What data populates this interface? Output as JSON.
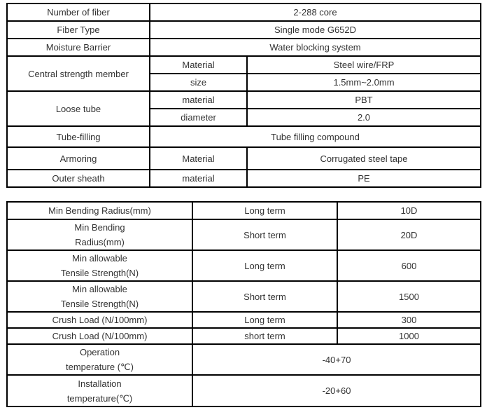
{
  "structure_table": {
    "rows": [
      {
        "label": "Number of fiber",
        "value": "2-288 core"
      },
      {
        "label": "Fiber Type",
        "value": "Single mode G652D"
      },
      {
        "label": "Moisture Barrier",
        "value": "Water blocking system"
      },
      {
        "label": "Central strength member",
        "sub": [
          {
            "label": "Material",
            "value": "Steel wire/FRP"
          },
          {
            "label": "size",
            "value": "1.5mm~2.0mm"
          }
        ]
      },
      {
        "label": "Loose tube",
        "sub": [
          {
            "label": "material",
            "value": "PBT"
          },
          {
            "label": "diameter",
            "value": "2.0"
          }
        ]
      },
      {
        "label": "Tube-filling",
        "value": "Tube filling compound"
      },
      {
        "label": "Armoring",
        "sub": [
          {
            "label": "Material",
            "value": "Corrugated steel tape"
          }
        ]
      },
      {
        "label": "Outer sheath",
        "sub": [
          {
            "label": "material",
            "value": "PE"
          }
        ]
      }
    ]
  },
  "performance_table": {
    "rows": [
      {
        "param": "Min Bending Radius(mm)",
        "condition": "Long term",
        "value": "10D"
      },
      {
        "param1": "Min Bending",
        "param2": "Radius(mm)",
        "condition": "Short term",
        "value": "20D"
      },
      {
        "param1": "Min allowable",
        "param2": "Tensile Strength(N)",
        "condition": "Long term",
        "value": "600"
      },
      {
        "param1": "Min allowable",
        "param2": "Tensile Strength(N)",
        "condition": "Short term",
        "value": "1500"
      },
      {
        "param": "Crush Load (N/100mm)",
        "condition": "Long term",
        "value": "300"
      },
      {
        "param": "Crush Load (N/100mm)",
        "condition": "short term",
        "value": "1000"
      },
      {
        "param1": "Operation",
        "param2": "temperature (℃)",
        "value": "-40+70"
      },
      {
        "param1": "Installation",
        "param2": "temperature(℃)",
        "value": "-20+60"
      }
    ]
  }
}
